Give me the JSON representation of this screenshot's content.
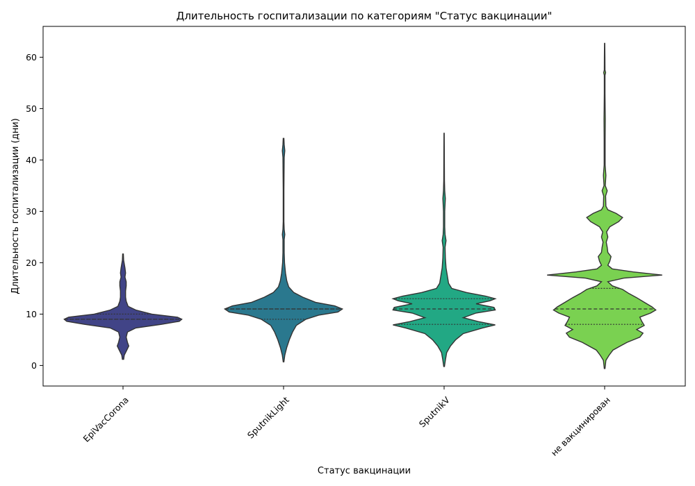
{
  "chart_data": {
    "type": "violin",
    "title": "Длительность госпитализации по категориям \"Статус вакцинации\"",
    "xlabel": "Статус вакцинации",
    "ylabel": "Длительность госпитализации (дни)",
    "ylim": [
      -4,
      66
    ],
    "yticks": [
      0,
      10,
      20,
      30,
      40,
      50,
      60
    ],
    "grid": false,
    "categories": [
      "EpiVacCorona",
      "SputnikLight",
      "SputnikV",
      "не вакцинирован"
    ],
    "violins": [
      {
        "category": "EpiVacCorona",
        "color": "#414487",
        "min": 1.2,
        "max": 21.7,
        "q1": 9,
        "median": 9,
        "q3": 10,
        "profile": [
          [
            1.2,
            0.01
          ],
          [
            2,
            0.02
          ],
          [
            3,
            0.06
          ],
          [
            3.8,
            0.09
          ],
          [
            4.5,
            0.07
          ],
          [
            5.5,
            0.05
          ],
          [
            6.5,
            0.07
          ],
          [
            7.3,
            0.2
          ],
          [
            8,
            0.6
          ],
          [
            8.6,
            0.88
          ],
          [
            9,
            0.92
          ],
          [
            9.4,
            0.85
          ],
          [
            10,
            0.45
          ],
          [
            10.8,
            0.2
          ],
          [
            11.5,
            0.08
          ],
          [
            12.5,
            0.05
          ],
          [
            13.3,
            0.04
          ],
          [
            14.5,
            0.04
          ],
          [
            15.5,
            0.05
          ],
          [
            16.3,
            0.05
          ],
          [
            17.2,
            0.03
          ],
          [
            18,
            0.04
          ],
          [
            19,
            0.03
          ],
          [
            20.5,
            0.01
          ],
          [
            21.7,
            0.005
          ]
        ]
      },
      {
        "category": "SputnikLight",
        "color": "#2a788e",
        "min": 0.7,
        "max": 44.2,
        "q1": 9,
        "median": 11,
        "q3": 11,
        "profile": [
          [
            0.7,
            0.005
          ],
          [
            2,
            0.02
          ],
          [
            3.5,
            0.05
          ],
          [
            5,
            0.09
          ],
          [
            6.5,
            0.14
          ],
          [
            7.8,
            0.2
          ],
          [
            9,
            0.35
          ],
          [
            9.8,
            0.55
          ],
          [
            10.4,
            0.85
          ],
          [
            11,
            0.92
          ],
          [
            11.6,
            0.8
          ],
          [
            12.3,
            0.5
          ],
          [
            13.3,
            0.3
          ],
          [
            14.2,
            0.16
          ],
          [
            15.3,
            0.08
          ],
          [
            16.5,
            0.05
          ],
          [
            18,
            0.03
          ],
          [
            20,
            0.015
          ],
          [
            22,
            0.01
          ],
          [
            24.5,
            0.01
          ],
          [
            25.5,
            0.02
          ],
          [
            26.5,
            0.01
          ],
          [
            28,
            0.005
          ],
          [
            34,
            0.005
          ],
          [
            40.5,
            0.01
          ],
          [
            41.8,
            0.02
          ],
          [
            43,
            0.01
          ],
          [
            44.2,
            0.005
          ]
        ]
      },
      {
        "category": "SputnikV",
        "color": "#22a884",
        "min": -0.2,
        "max": 45.2,
        "q1": 8,
        "median": 11,
        "q3": 13,
        "profile": [
          [
            -0.2,
            0.005
          ],
          [
            1,
            0.02
          ],
          [
            2.5,
            0.04
          ],
          [
            3.8,
            0.1
          ],
          [
            5,
            0.18
          ],
          [
            6.2,
            0.3
          ],
          [
            7.3,
            0.6
          ],
          [
            7.9,
            0.8
          ],
          [
            8.5,
            0.55
          ],
          [
            9.3,
            0.3
          ],
          [
            10.2,
            0.5
          ],
          [
            10.8,
            0.8
          ],
          [
            11.3,
            0.78
          ],
          [
            12,
            0.5
          ],
          [
            12.6,
            0.72
          ],
          [
            13,
            0.8
          ],
          [
            13.5,
            0.65
          ],
          [
            14.2,
            0.35
          ],
          [
            15,
            0.12
          ],
          [
            16,
            0.07
          ],
          [
            17.5,
            0.05
          ],
          [
            19,
            0.03
          ],
          [
            21,
            0.02
          ],
          [
            23,
            0.015
          ],
          [
            24.3,
            0.03
          ],
          [
            25.5,
            0.015
          ],
          [
            27,
            0.01
          ],
          [
            30,
            0.01
          ],
          [
            32.5,
            0.02
          ],
          [
            34,
            0.01
          ],
          [
            36,
            0.005
          ],
          [
            45.2,
            0.002
          ]
        ]
      },
      {
        "category": "не вакцинирован",
        "color": "#7ad151",
        "min": -0.6,
        "max": 62.7,
        "q1": 8,
        "median": 11,
        "q3": 15,
        "profile": [
          [
            -0.6,
            0.005
          ],
          [
            1,
            0.02
          ],
          [
            2,
            0.07
          ],
          [
            3,
            0.13
          ],
          [
            4.5,
            0.35
          ],
          [
            5.5,
            0.55
          ],
          [
            6.3,
            0.6
          ],
          [
            7,
            0.5
          ],
          [
            7.8,
            0.62
          ],
          [
            8.6,
            0.58
          ],
          [
            9.4,
            0.55
          ],
          [
            10.2,
            0.72
          ],
          [
            10.8,
            0.8
          ],
          [
            11.4,
            0.74
          ],
          [
            12.3,
            0.62
          ],
          [
            13.2,
            0.5
          ],
          [
            14,
            0.38
          ],
          [
            14.8,
            0.28
          ],
          [
            15.5,
            0.12
          ],
          [
            16.3,
            0.05
          ],
          [
            17,
            0.3
          ],
          [
            17.6,
            0.9
          ],
          [
            18.2,
            0.45
          ],
          [
            18.8,
            0.12
          ],
          [
            19.5,
            0.05
          ],
          [
            20.3,
            0.08
          ],
          [
            21.2,
            0.1
          ],
          [
            22,
            0.05
          ],
          [
            23,
            0.04
          ],
          [
            24,
            0.025
          ],
          [
            25,
            0.05
          ],
          [
            26,
            0.03
          ],
          [
            27,
            0.08
          ],
          [
            28,
            0.22
          ],
          [
            28.8,
            0.28
          ],
          [
            29.6,
            0.18
          ],
          [
            30.3,
            0.05
          ],
          [
            31,
            0.02
          ],
          [
            33,
            0.015
          ],
          [
            34,
            0.04
          ],
          [
            35,
            0.01
          ],
          [
            37,
            0.02
          ],
          [
            39,
            0.008
          ],
          [
            44,
            0.008
          ],
          [
            48,
            0.01
          ],
          [
            50,
            0.008
          ],
          [
            53,
            0.005
          ],
          [
            56.5,
            0.005
          ],
          [
            57,
            0.015
          ],
          [
            57.5,
            0.005
          ],
          [
            60,
            0.004
          ],
          [
            62.7,
            0.002
          ]
        ]
      }
    ]
  }
}
